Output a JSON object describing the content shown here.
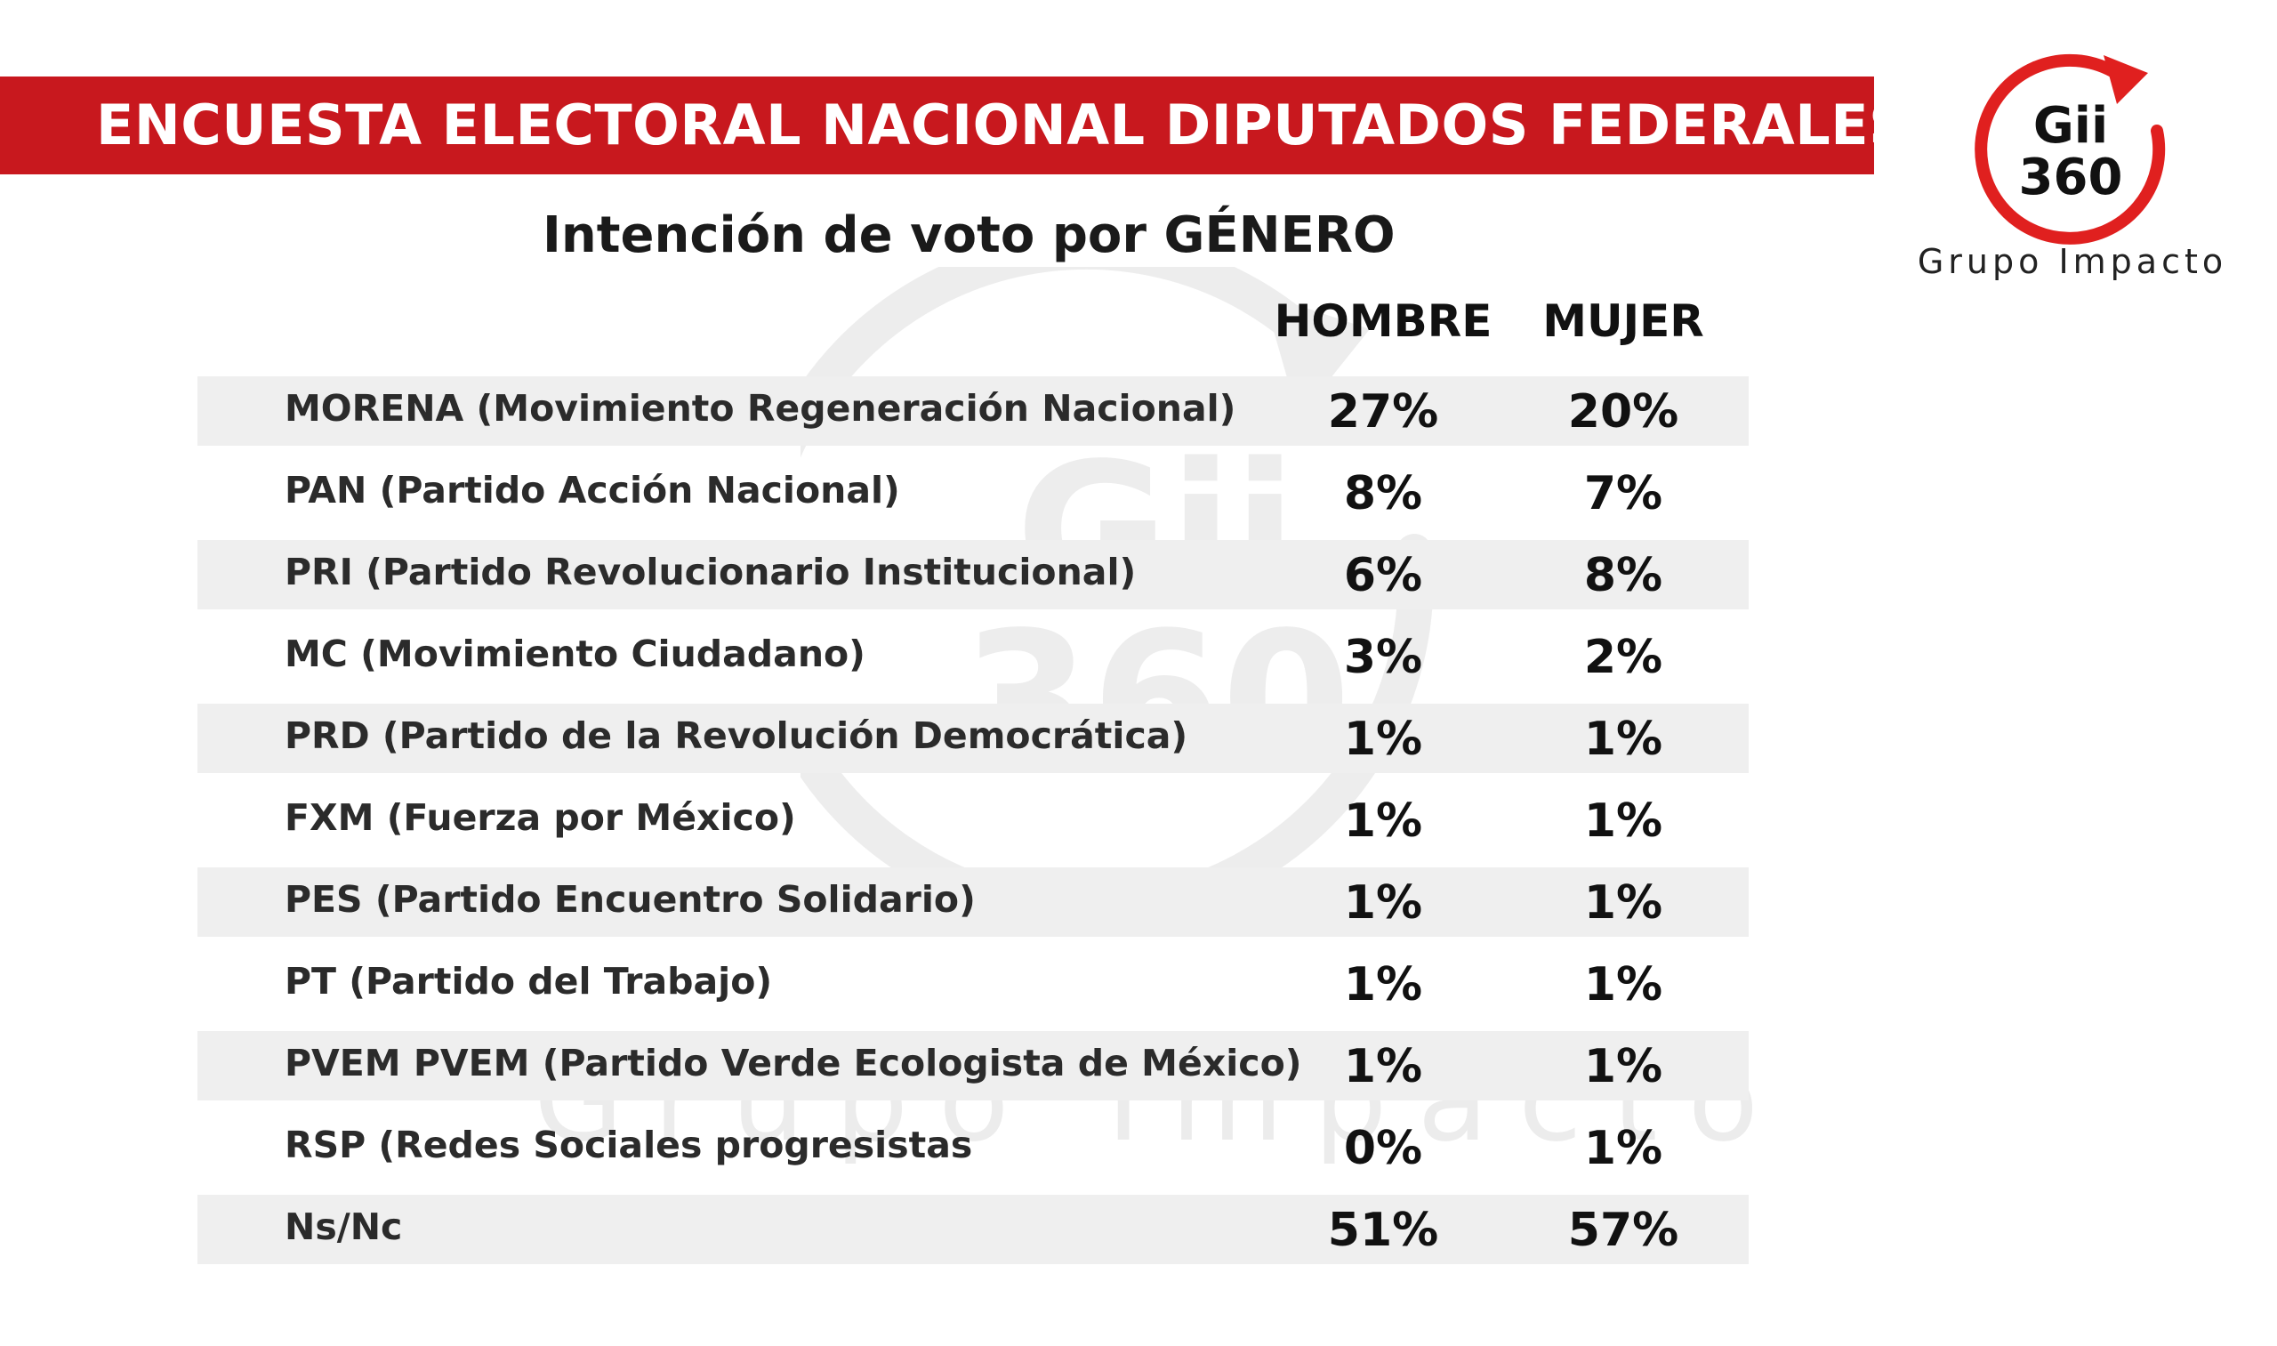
{
  "header": {
    "title": "ENCUESTA ELECTORAL NACIONAL DIPUTADOS FEDERALES",
    "subtitle": "Intención de voto por GÉNERO",
    "brand_color": "#c8181e"
  },
  "logo": {
    "line1": "Gii",
    "line2": "360",
    "caption": "Grupo Impacto"
  },
  "watermark": {
    "line1": "Gii",
    "line2": "360",
    "caption": "Grupo Impacto"
  },
  "chart_data": {
    "type": "table",
    "title": "Intención de voto por GÉNERO",
    "columns": [
      "HOMBRE",
      "MUJER"
    ],
    "rows": [
      {
        "party": "MORENA (Movimiento Regeneración Nacional)",
        "hombre": "27%",
        "mujer": "20%"
      },
      {
        "party": "PAN (Partido Acción Nacional)",
        "hombre": "8%",
        "mujer": "7%"
      },
      {
        "party": "PRI (Partido Revolucionario Institucional)",
        "hombre": "6%",
        "mujer": "8%"
      },
      {
        "party": "MC (Movimiento Ciudadano)",
        "hombre": "3%",
        "mujer": "2%"
      },
      {
        "party": "PRD (Partido de la Revolución Democrática)",
        "hombre": "1%",
        "mujer": "1%"
      },
      {
        "party": "FXM (Fuerza por México)",
        "hombre": "1%",
        "mujer": "1%"
      },
      {
        "party": "PES  (Partido Encuentro Solidario)",
        "hombre": "1%",
        "mujer": "1%"
      },
      {
        "party": "PT (Partido del Trabajo)",
        "hombre": "1%",
        "mujer": "1%"
      },
      {
        "party": "PVEM PVEM (Partido Verde Ecologista de México)",
        "hombre": "1%",
        "mujer": "1%"
      },
      {
        "party": "RSP (Redes Sociales progresistas",
        "hombre": "0%",
        "mujer": "1%"
      },
      {
        "party": "Ns/Nc",
        "hombre": "51%",
        "mujer": "57%"
      }
    ]
  }
}
